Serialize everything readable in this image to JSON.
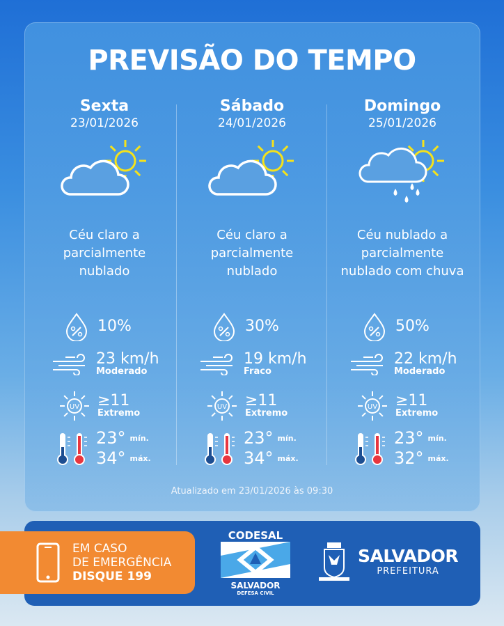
{
  "title": "PREVISÃO DO TEMPO",
  "days": [
    {
      "day": "Sexta",
      "date": "23/01/2026",
      "icon": "partly-cloudy-icon",
      "desc": [
        "Céu claro a",
        "parcialmente",
        "nublado"
      ],
      "rain": "10%",
      "wind": "23 km/h",
      "wind_level": "Moderado",
      "uv": "≥11",
      "uv_level": "Extremo",
      "min": "23°",
      "max": "34°"
    },
    {
      "day": "Sábado",
      "date": "24/01/2026",
      "icon": "partly-cloudy-icon",
      "desc": [
        "Céu claro a",
        "parcialmente",
        "nublado"
      ],
      "rain": "30%",
      "wind": "19 km/h",
      "wind_level": "Fraco",
      "uv": "≥11",
      "uv_level": "Extremo",
      "min": "23°",
      "max": "34°"
    },
    {
      "day": "Domingo",
      "date": "25/01/2026",
      "icon": "cloud-rain-sun-icon",
      "desc": [
        "Céu nublado a",
        "parcialmente",
        "nublado com chuva"
      ],
      "rain": "50%",
      "wind": "22 km/h",
      "wind_level": "Moderado",
      "uv": "≥11",
      "uv_level": "Extremo",
      "min": "23°",
      "max": "32°"
    }
  ],
  "labels": {
    "min": "mín.",
    "max": "máx."
  },
  "updated": "Atualizado em 23/01/2026 às 09:30",
  "footer": {
    "emergency": [
      "EM CASO",
      "DE EMERGÊNCIA",
      "DISQUE 199"
    ],
    "codesal": "CODESAL",
    "codesal_city": "SALVADOR",
    "codesal_sub": "DEFESA CIVIL",
    "pref_city": "SALVADOR",
    "pref_sub": "PREFEITURA"
  },
  "colors": {
    "sun": "#f5e21b",
    "orange": "#f28a32",
    "footer_blue": "#1f5fb5",
    "thermo_cold": "#1d4e91",
    "thermo_hot": "#e8363f"
  }
}
